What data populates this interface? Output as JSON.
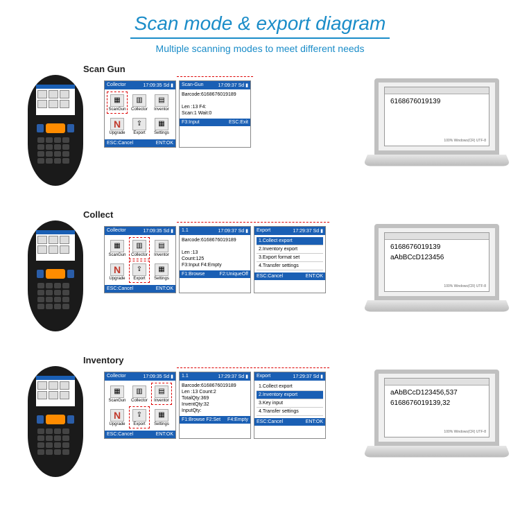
{
  "colors": {
    "accent": "#1a8cc8",
    "screen_header": "#1a5fb4",
    "dashed_red": "#d00000",
    "device_body": "#1a1a1a",
    "orange_btn": "#ff8c00"
  },
  "header": {
    "title": "Scan mode & export diagram",
    "subtitle": "Multiple scanning modes to meet different needs"
  },
  "rows": [
    {
      "label": "Scan Gun",
      "menu_screen": {
        "title_left": "Collector",
        "title_right": "17:09:35 Sd ▮",
        "icons": [
          {
            "glyph": "▦",
            "label": "ScanGun",
            "selected": true
          },
          {
            "glyph": "▥",
            "label": "Collector"
          },
          {
            "glyph": "▤",
            "label": "Inventor"
          },
          {
            "glyph": "N",
            "label": "Upgrade",
            "n": true
          },
          {
            "glyph": "⇪",
            "label": "Export"
          },
          {
            "glyph": "▦",
            "label": "Settings"
          }
        ],
        "footer_left": "ESC:Cancel",
        "footer_right": "ENT:OK"
      },
      "detail_screens": [
        {
          "title_left": "Scan-Gun",
          "title_right": "17:09:37 Sd ▮",
          "lines": [
            "Barcode:6168676019189",
            "",
            "Len :13    F4:",
            "Scan:1     Wait:0"
          ],
          "footer_left": "F3:Input",
          "footer_right": "ESC:Exit"
        }
      ],
      "laptop_lines": [
        "6168676019139"
      ]
    },
    {
      "label": "Collect",
      "menu_screen": {
        "title_left": "Collector",
        "title_right": "17:09:35 Sd ▮",
        "icons": [
          {
            "glyph": "▦",
            "label": "ScanGun"
          },
          {
            "glyph": "▥",
            "label": "Collector",
            "selected": true
          },
          {
            "glyph": "▤",
            "label": "Inventor"
          },
          {
            "glyph": "N",
            "label": "Upgrade",
            "n": true
          },
          {
            "glyph": "⇪",
            "label": "Export",
            "selected": true
          },
          {
            "glyph": "▦",
            "label": "Settings"
          }
        ],
        "footer_left": "ESC:Cancel",
        "footer_right": "ENT:OK"
      },
      "detail_screens": [
        {
          "title_left": "1.1",
          "title_right": "17:09:37 Sd ▮",
          "lines": [
            "Barcode:6168676019189",
            "",
            "Len  :13",
            "Count:125",
            "F3:Input    F4:Empty"
          ],
          "footer_left": "F1:Browse",
          "footer_right": "F2:UniqueOff"
        },
        {
          "title_left": "Export",
          "title_right": "17:29:37 Sd ▮",
          "menu": [
            {
              "text": "1.Collect export",
              "selected": true
            },
            {
              "text": "2.Inventory export"
            },
            {
              "text": "3.Export format set"
            },
            {
              "text": "4.Transfer settings"
            }
          ],
          "footer_left": "ESC:Cancel",
          "footer_right": "ENT:OK"
        }
      ],
      "laptop_lines": [
        "6168676019139",
        "aAbBCcD123456"
      ]
    },
    {
      "label": "Inventory",
      "menu_screen": {
        "title_left": "Collector",
        "title_right": "17:09:35 Sd ▮",
        "icons": [
          {
            "glyph": "▦",
            "label": "ScanGun"
          },
          {
            "glyph": "▥",
            "label": "Collector"
          },
          {
            "glyph": "▤",
            "label": "Inventor",
            "selected": true
          },
          {
            "glyph": "N",
            "label": "Upgrade",
            "n": true
          },
          {
            "glyph": "⇪",
            "label": "Export",
            "selected": true
          },
          {
            "glyph": "▦",
            "label": "Settings"
          }
        ],
        "footer_left": "ESC:Cancel",
        "footer_right": "ENT:OK"
      },
      "detail_screens": [
        {
          "title_left": "1.1",
          "title_right": "17:29:37 Sd ▮",
          "lines": [
            "Barcode:6168676019189",
            "Len :13   Count:2",
            "TotalQty:369",
            "InventQty:32",
            "InputQty:"
          ],
          "footer_left": "F1:Browse F2:Set",
          "footer_right": "F4:Empty"
        },
        {
          "title_left": "Export",
          "title_right": "17:29:37 Sd ▮",
          "menu": [
            {
              "text": "1.Collect export"
            },
            {
              "text": "2.Inventory export",
              "selected": true
            },
            {
              "text": "3.Key input"
            },
            {
              "text": "4.Transfer settings"
            }
          ],
          "footer_left": "ESC:Cancel",
          "footer_right": "ENT:OK"
        }
      ],
      "laptop_lines": [
        "aAbBCcD123456,537",
        "6168676019139,32"
      ]
    }
  ]
}
